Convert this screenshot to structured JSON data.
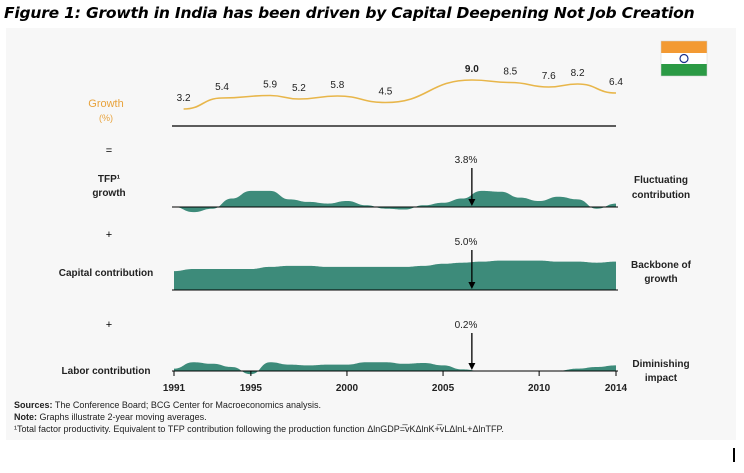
{
  "figure": {
    "title": "Figure 1: Growth in India has been driven by Capital Deepening Not Job Creation",
    "flag": "india-flag",
    "accent_color": "#e8a33d",
    "area_color": "#3d8b7a"
  },
  "chart_data": [
    {
      "type": "line",
      "name": "growth",
      "label": "Growth",
      "unit": "(%)",
      "color": "#e8b64a",
      "points": [
        {
          "x": 1991.5,
          "y": 3.2,
          "label": "3.2"
        },
        {
          "x": 1993.5,
          "y": 5.4,
          "label": "5.4"
        },
        {
          "x": 1996,
          "y": 5.9,
          "label": "5.9"
        },
        {
          "x": 1997.5,
          "y": 5.2,
          "label": "5.2"
        },
        {
          "x": 1999.5,
          "y": 5.8,
          "label": "5.8"
        },
        {
          "x": 2002,
          "y": 4.5,
          "label": "4.5"
        },
        {
          "x": 2006.5,
          "y": 9.0,
          "label": "9.0"
        },
        {
          "x": 2008.5,
          "y": 8.5,
          "label": "8.5"
        },
        {
          "x": 2010.5,
          "y": 7.6,
          "label": "7.6"
        },
        {
          "x": 2012,
          "y": 8.2,
          "label": "8.2"
        },
        {
          "x": 2014,
          "y": 6.4,
          "label": "6.4"
        }
      ]
    },
    {
      "type": "area",
      "name": "tfp",
      "label_lines": [
        "TFP¹",
        "growth"
      ],
      "operator": "=",
      "annotation": "3.8%",
      "annotation_x": 2006.5,
      "right_label_lines": [
        "Fluctuating",
        "contribution"
      ],
      "x": [
        1991,
        1992,
        1993,
        1994,
        1995,
        1996,
        1997,
        1998,
        1999,
        2000,
        2001,
        2002,
        2003,
        2004,
        2005,
        2006,
        2007,
        2008,
        2009,
        2010,
        2011,
        2012,
        2013,
        2014
      ],
      "values": [
        0.0,
        -0.6,
        -0.2,
        1.0,
        1.9,
        1.9,
        0.9,
        0.6,
        0.4,
        0.7,
        0.2,
        -0.2,
        -0.3,
        0.2,
        0.5,
        1.0,
        1.9,
        1.8,
        1.1,
        0.7,
        1.2,
        0.9,
        -0.2,
        0.4
      ]
    },
    {
      "type": "area",
      "name": "capital",
      "label_lines": [
        "Capital contribution"
      ],
      "operator": "+",
      "annotation": "5.0%",
      "annotation_x": 2006.5,
      "right_label_lines": [
        "Backbone of",
        "growth"
      ],
      "x": [
        1991,
        1992,
        1993,
        1994,
        1995,
        1996,
        1997,
        1998,
        1999,
        2000,
        2001,
        2002,
        2003,
        2004,
        2005,
        2006,
        2007,
        2008,
        2009,
        2010,
        2011,
        2012,
        2013,
        2014
      ],
      "values": [
        1.8,
        2.0,
        2.0,
        2.0,
        2.0,
        2.2,
        2.3,
        2.3,
        2.2,
        2.2,
        2.2,
        2.2,
        2.2,
        2.3,
        2.5,
        2.6,
        2.7,
        2.8,
        2.8,
        2.8,
        2.7,
        2.7,
        2.6,
        2.7
      ]
    },
    {
      "type": "area",
      "name": "labor",
      "label_lines": [
        "Labor contribution"
      ],
      "operator": "+",
      "annotation": "0.2%",
      "annotation_x": 2006.5,
      "right_label_lines": [
        "Diminishing",
        "impact"
      ],
      "x": [
        1991,
        1992,
        1993,
        1994,
        1995,
        1996,
        1997,
        1998,
        1999,
        2000,
        2001,
        2002,
        2003,
        2004,
        2005,
        2006,
        2007,
        2008,
        2009,
        2010,
        2011,
        2012,
        2013,
        2014
      ],
      "values": [
        0.3,
        1.1,
        0.9,
        0.5,
        -0.4,
        1.1,
        0.8,
        0.7,
        0.8,
        0.8,
        1.1,
        1.1,
        0.9,
        1.0,
        0.7,
        0.2,
        0.0,
        0.0,
        0.0,
        0.0,
        0.05,
        0.3,
        0.5,
        0.7
      ]
    }
  ],
  "x_axis": {
    "ticks": [
      1991,
      1995,
      2000,
      2005,
      2010,
      2014
    ],
    "tick_labels": [
      "1991",
      "1995",
      "2000",
      "2005",
      "2010",
      "2014"
    ]
  },
  "footer": {
    "sources_label": "Sources:",
    "sources_text": "The Conference Board; BCG Center for Macroeconomics analysis.",
    "note_label": "Note:",
    "note_text": "Graphs illustrate 2-year moving averages.",
    "footnote": "¹Total factor productivity. Equivalent to TFP contribution following the production function ΔlnGDP=̅vKΔlnK+̅vLΔlnL+ΔlnTFP."
  }
}
